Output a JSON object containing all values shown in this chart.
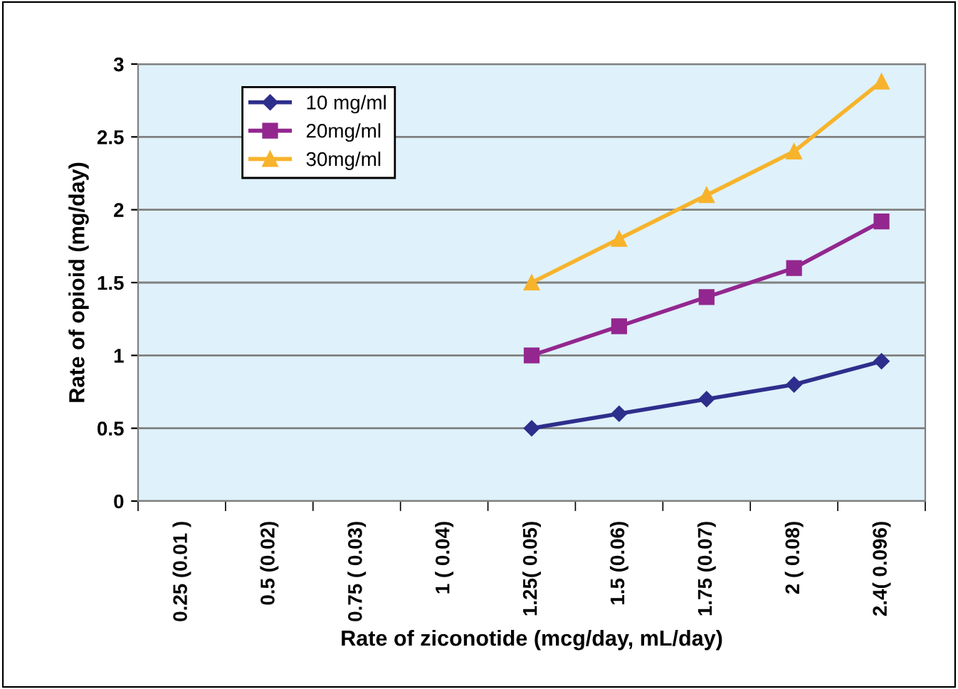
{
  "chart_data": {
    "type": "line",
    "xlabel": "Rate of ziconotide (mcg/day, mL/day)",
    "ylabel": "Rate of opioid (mg/day)",
    "categories": [
      "0.25 (0.01 )",
      "0.5 (0.02)",
      "0.75 ( 0.03)",
      "1 ( 0.04)",
      "1.25( 0.05)",
      "1.5 (0.06)",
      "1.75 (0.07)",
      "2 ( 0.08)",
      "2.4( 0.096)"
    ],
    "series": [
      {
        "name": "10 mg/ml",
        "color": "#2e2e8c",
        "marker": "diamond",
        "values": [
          null,
          null,
          null,
          null,
          0.5,
          0.6,
          0.7,
          0.8,
          0.96
        ]
      },
      {
        "name": "20mg/ml",
        "color": "#93278f",
        "marker": "square",
        "values": [
          null,
          null,
          null,
          null,
          1.0,
          1.2,
          1.4,
          1.6,
          1.92
        ]
      },
      {
        "name": "30mg/ml",
        "color": "#f7b32b",
        "marker": "triangle",
        "values": [
          null,
          null,
          null,
          null,
          1.5,
          1.8,
          2.1,
          2.4,
          2.88
        ]
      }
    ],
    "ylim": [
      0,
      3
    ],
    "yticks": [
      0,
      0.5,
      1,
      1.5,
      2,
      2.5,
      3
    ],
    "grid": "y",
    "legend": "top left"
  }
}
